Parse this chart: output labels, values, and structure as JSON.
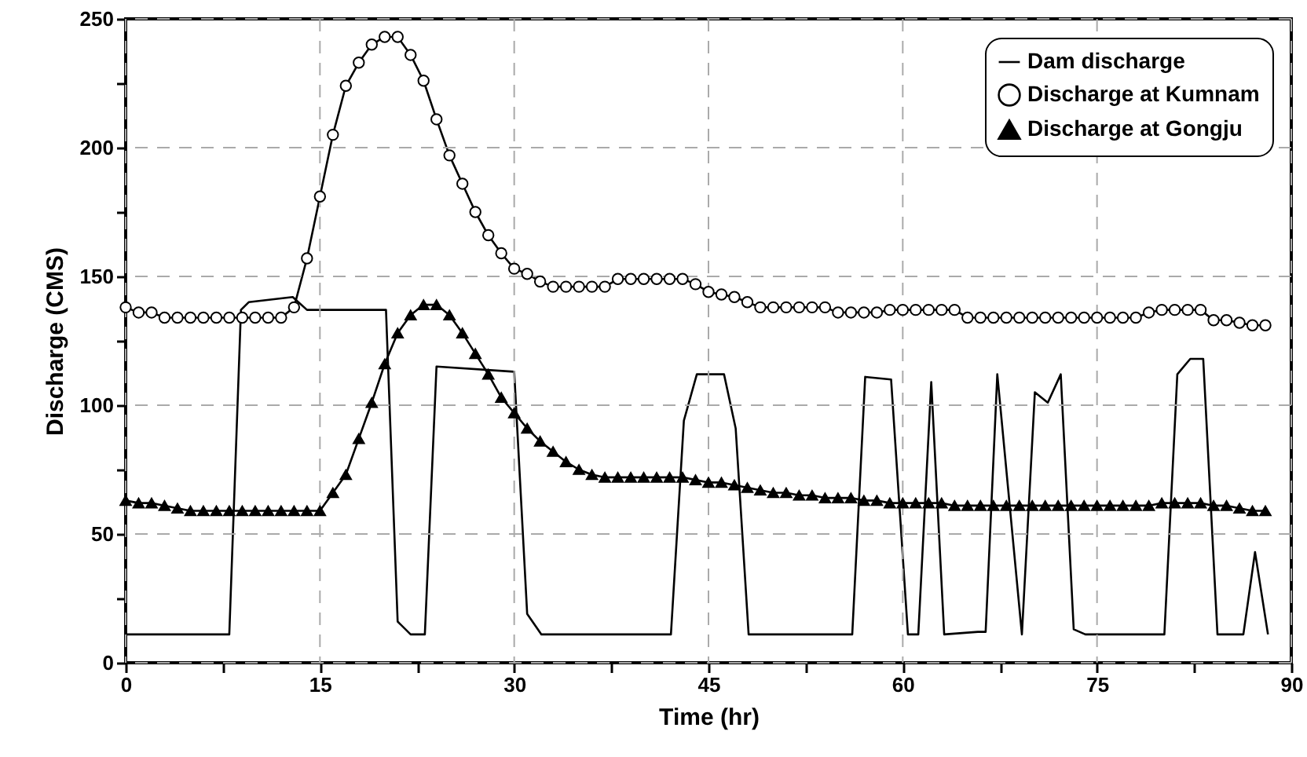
{
  "chart_data": {
    "type": "line",
    "xlabel": "Time (hr)",
    "ylabel": "Discharge (CMS)",
    "x": [
      0,
      1,
      2,
      3,
      4,
      5,
      6,
      7,
      8,
      9,
      10,
      11,
      12,
      13,
      14,
      15,
      16,
      17,
      18,
      19,
      20,
      21,
      22,
      23,
      24,
      25,
      26,
      27,
      28,
      29,
      30,
      31,
      32,
      33,
      34,
      35,
      36,
      37,
      38,
      39,
      40,
      41,
      42,
      43,
      44,
      45,
      46,
      47,
      48,
      49,
      50,
      51,
      52,
      53,
      54,
      55,
      56,
      57,
      58,
      59,
      60,
      61,
      62,
      63,
      64,
      65,
      66,
      67,
      68,
      69,
      70,
      71,
      72,
      73,
      74,
      75,
      76,
      77,
      78,
      79,
      80,
      81,
      82,
      83,
      84,
      85,
      86,
      87,
      88
    ],
    "series": [
      {
        "name": "Dam discharge",
        "color": "#000000",
        "marker": "none",
        "x": [
          0,
          8.0,
          8.9,
          9.5,
          12.9,
          14.0,
          20.1,
          21.0,
          22.0,
          23.1,
          24.0,
          30.0,
          31.0,
          32.1,
          42.1,
          43.1,
          44.1,
          46.2,
          47.1,
          48.1,
          56.1,
          57.1,
          59.1,
          60.4,
          61.2,
          62.2,
          63.2,
          65.8,
          66.4,
          67.3,
          69.2,
          70.2,
          71.2,
          72.2,
          73.2,
          74.1,
          80.2,
          81.2,
          82.2,
          83.2,
          84.3,
          86.3,
          87.2,
          88.2
        ],
        "values": [
          11,
          11,
          137,
          140,
          142,
          137,
          137,
          16,
          11,
          11,
          115,
          113,
          19,
          11,
          11,
          94,
          112,
          112,
          91,
          11,
          11,
          111,
          110,
          11,
          11,
          109,
          11,
          12,
          12,
          112,
          11,
          105,
          101,
          112,
          13,
          11,
          11,
          112,
          118,
          118,
          11,
          11,
          43,
          11
        ]
      },
      {
        "name": "Discharge at Kumnam",
        "color": "#000000",
        "marker": "circle",
        "values": [
          138,
          136,
          136,
          134,
          134,
          134,
          134,
          134,
          134,
          134,
          134,
          134,
          134,
          138,
          157,
          181,
          205,
          224,
          233,
          240,
          243,
          243,
          236,
          226,
          211,
          197,
          186,
          175,
          166,
          159,
          153,
          151,
          148,
          146,
          146,
          146,
          146,
          146,
          149,
          149,
          149,
          149,
          149,
          149,
          147,
          144,
          143,
          142,
          140,
          138,
          138,
          138,
          138,
          138,
          138,
          136,
          136,
          136,
          136,
          137,
          137,
          137,
          137,
          137,
          137,
          134,
          134,
          134,
          134,
          134,
          134,
          134,
          134,
          134,
          134,
          134,
          134,
          134,
          134,
          136,
          137,
          137,
          137,
          137,
          133,
          133,
          132,
          131,
          131
        ]
      },
      {
        "name": "Discharge at Gongju",
        "color": "#000000",
        "marker": "triangle",
        "values": [
          63,
          62,
          62,
          61,
          60,
          59,
          59,
          59,
          59,
          59,
          59,
          59,
          59,
          59,
          59,
          59,
          66,
          73,
          87,
          101,
          116,
          128,
          135,
          139,
          139,
          135,
          128,
          120,
          112,
          103,
          97,
          91,
          86,
          82,
          78,
          75,
          73,
          72,
          72,
          72,
          72,
          72,
          72,
          72,
          71,
          70,
          70,
          69,
          68,
          67,
          66,
          66,
          65,
          65,
          64,
          64,
          64,
          63,
          63,
          62,
          62,
          62,
          62,
          62,
          61,
          61,
          61,
          61,
          61,
          61,
          61,
          61,
          61,
          61,
          61,
          61,
          61,
          61,
          61,
          61,
          62,
          62,
          62,
          62,
          61,
          61,
          60,
          59,
          59
        ]
      }
    ],
    "xlim": [
      0,
      90
    ],
    "xticks": [
      0,
      {
        "value": 7.5,
        "label": null
      },
      15,
      {
        "value": 22.5,
        "label": null
      },
      30,
      {
        "value": 37.5,
        "label": null
      },
      45,
      {
        "value": 52.5,
        "label": null
      },
      60,
      {
        "value": 67.5,
        "label": null
      },
      75,
      {
        "value": 82.5,
        "label": null
      },
      90
    ],
    "ylim": [
      0,
      250
    ],
    "yticks": [
      0,
      {
        "value": 25,
        "label": null
      },
      50,
      {
        "value": 75,
        "label": null
      },
      100,
      {
        "value": 125,
        "label": null
      },
      150,
      {
        "value": 175,
        "label": null
      },
      200,
      {
        "value": 225,
        "label": null
      },
      250
    ],
    "grid": true,
    "legend": "top right",
    "line_style": "solid"
  }
}
